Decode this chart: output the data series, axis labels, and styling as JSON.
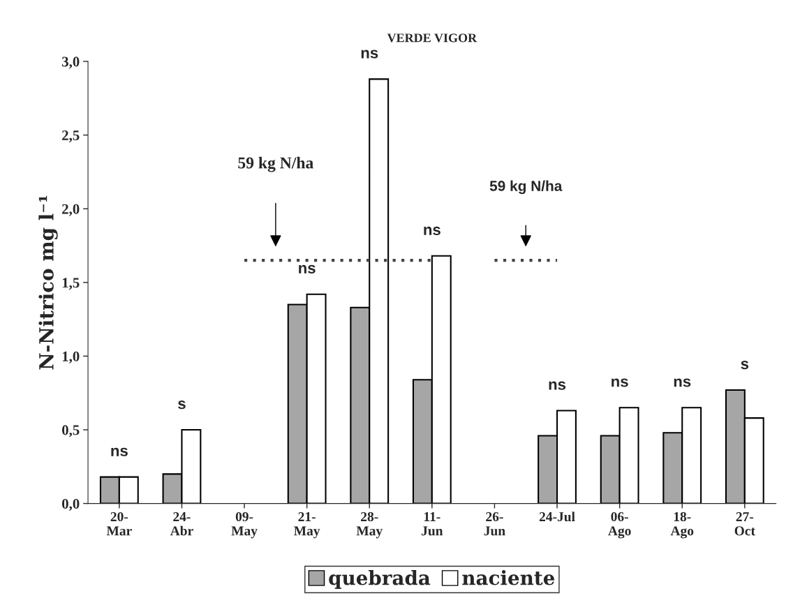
{
  "chart_data": {
    "type": "bar",
    "title": "VERDE VIGOR",
    "ylabel": "N-Nitrico mg l⁻¹",
    "categories": [
      "20-\nMar",
      "24-\nAbr",
      "09-\nMay",
      "21-\nMay",
      "28-\nMay",
      "11-\nJun",
      "26-\nJun",
      "24-Jul",
      "06-\nAgo",
      "18-\nAgo",
      "27-\nOct"
    ],
    "series": [
      {
        "name": "quebrada",
        "color": "#a6a6a6",
        "values": [
          0.18,
          0.2,
          null,
          1.35,
          1.33,
          0.84,
          null,
          0.46,
          0.46,
          0.48,
          0.77
        ]
      },
      {
        "name": "naciente",
        "color": "#ffffff",
        "values": [
          0.18,
          0.5,
          null,
          1.42,
          2.88,
          1.68,
          null,
          0.63,
          0.65,
          0.65,
          0.58
        ]
      },
      {
        "type": "line",
        "color": "#444444",
        "line_style": "dotted",
        "marker": "none",
        "values": [
          null,
          null,
          1.65,
          1.65,
          1.65,
          1.65,
          null,
          null,
          null,
          null,
          null
        ]
      },
      {
        "type": "line",
        "color": "#444444",
        "line_style": "dotted",
        "marker": "none",
        "values": [
          null,
          null,
          null,
          null,
          null,
          null,
          1.65,
          1.65,
          null,
          null,
          null
        ]
      }
    ],
    "ylim": [
      0,
      3.0
    ],
    "yticks": [
      {
        "value": 0,
        "label": "0,0"
      },
      {
        "value": 0.5,
        "label": "0,5"
      },
      {
        "value": 1.0,
        "label": "1,0"
      },
      {
        "value": 1.5,
        "label": "1,5"
      },
      {
        "value": 2.0,
        "label": "2,0"
      },
      {
        "value": 2.5,
        "label": "2,5"
      },
      {
        "value": 3.0,
        "label": "3,0"
      }
    ],
    "annotations": [
      "ns",
      "s",
      "ns",
      "ns",
      "ns",
      "ns",
      "ns",
      "ns",
      "s",
      "59 kg N/ha",
      "59 kg N/ha"
    ],
    "grid": false,
    "legend": "bottom"
  }
}
